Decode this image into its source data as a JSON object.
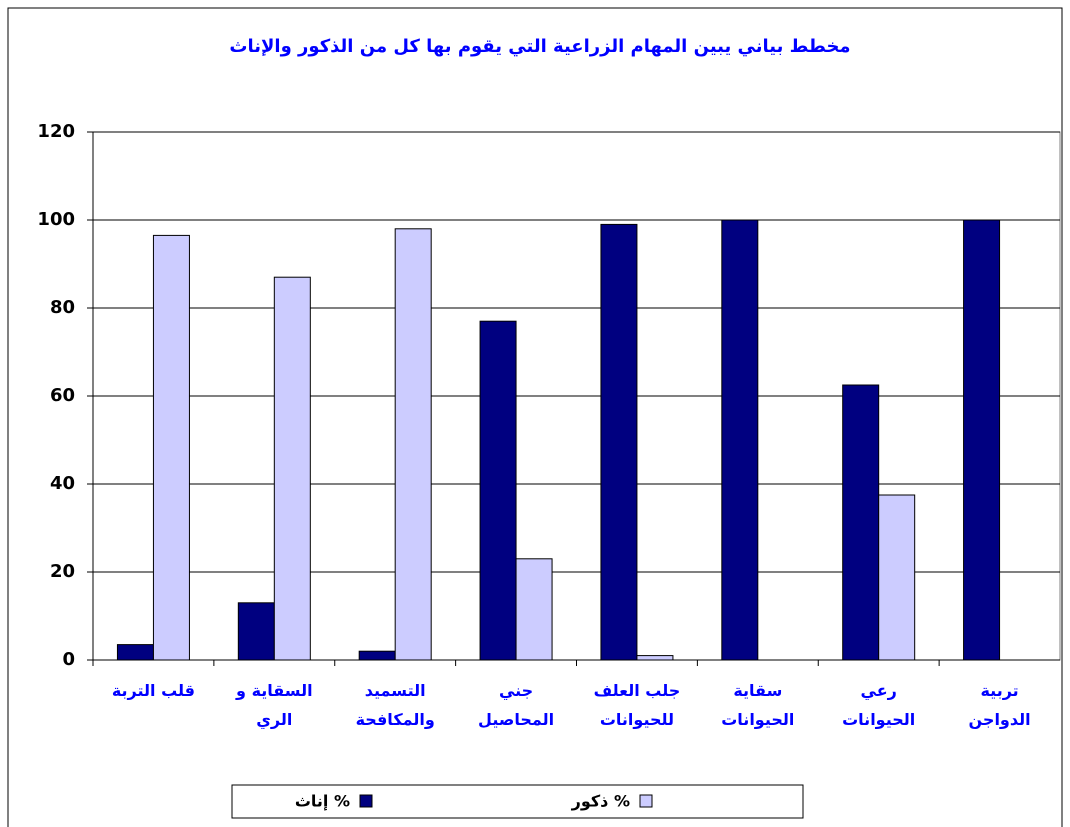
{
  "chart_data": {
    "type": "bar",
    "title": "مخطط بياني يبين المهام الزراعية التي يقوم بها كل من الذكور والإناث",
    "categories": [
      "قلب التربة",
      "السقاية و\nالري",
      "التسميد\nوالمكافحة",
      "جني\nالمحاصيل",
      "جلب العلف\nللحيوانات",
      "سقاية\nالحيوانات",
      "رعي\nالحيوانات",
      "تربية\nالدواجن"
    ],
    "series": [
      {
        "name": "إناث %",
        "color": "#000080",
        "values": [
          3.5,
          13,
          2,
          77,
          99,
          100,
          62.5,
          100
        ]
      },
      {
        "name": "ذكور %",
        "color": "#ccccff",
        "values": [
          96.5,
          87,
          98,
          23,
          1,
          0,
          37.5,
          0
        ]
      }
    ],
    "ylim": [
      0,
      120
    ],
    "yticks": [
      0,
      20,
      40,
      60,
      80,
      100,
      120
    ],
    "grid": true,
    "legend": "bottom"
  }
}
